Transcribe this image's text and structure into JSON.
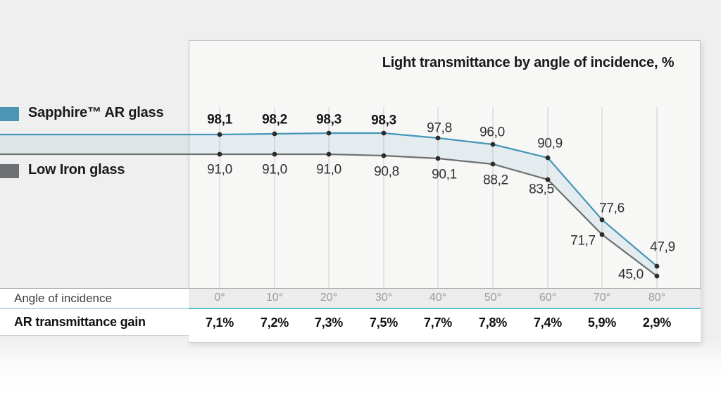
{
  "legend": {
    "items": [
      {
        "label": "Sapphire™ AR glass",
        "color": "#4b96b4"
      },
      {
        "label": "Low Iron glass",
        "color": "#6e7173"
      }
    ]
  },
  "chart_data": {
    "type": "line",
    "title": "Light transmittance by angle of incidence, %",
    "categories": [
      "0°",
      "10°",
      "20°",
      "30°",
      "40°",
      "50°",
      "60°",
      "70°",
      "80°"
    ],
    "x_axis_row_label": "Angle of incidence",
    "series": [
      {
        "name": "Sapphire™ AR glass",
        "color": "#4596ba",
        "values": [
          98.1,
          98.2,
          98.3,
          98.3,
          97.8,
          96.0,
          90.9,
          77.6,
          47.9
        ],
        "labels": [
          "98,1",
          "98,2",
          "98,3",
          "98,3",
          "97,8",
          "96,0",
          "90,9",
          "77,6",
          "47,9"
        ]
      },
      {
        "name": "Low Iron glass",
        "color": "#6d7070",
        "values": [
          91.0,
          91.0,
          91.0,
          90.8,
          90.1,
          88.2,
          83.5,
          71.7,
          45.0
        ],
        "labels": [
          "91,0",
          "91,0",
          "91,0",
          "90,8",
          "90,1",
          "88,2",
          "83,5",
          "71,7",
          "45,0"
        ]
      }
    ],
    "gain_row": {
      "label": "AR transmittance gain",
      "values": [
        "7,1%",
        "7,2%",
        "7,3%",
        "7,5%",
        "7,7%",
        "7,8%",
        "7,4%",
        "5,9%",
        "2,9%"
      ]
    },
    "legend_position": "left",
    "grid": "vertical-only",
    "marker_color": "#2c2c2c",
    "band_fill": "rgba(75,150,180,0.10)",
    "ylim_visual": [
      45,
      98.3
    ]
  }
}
